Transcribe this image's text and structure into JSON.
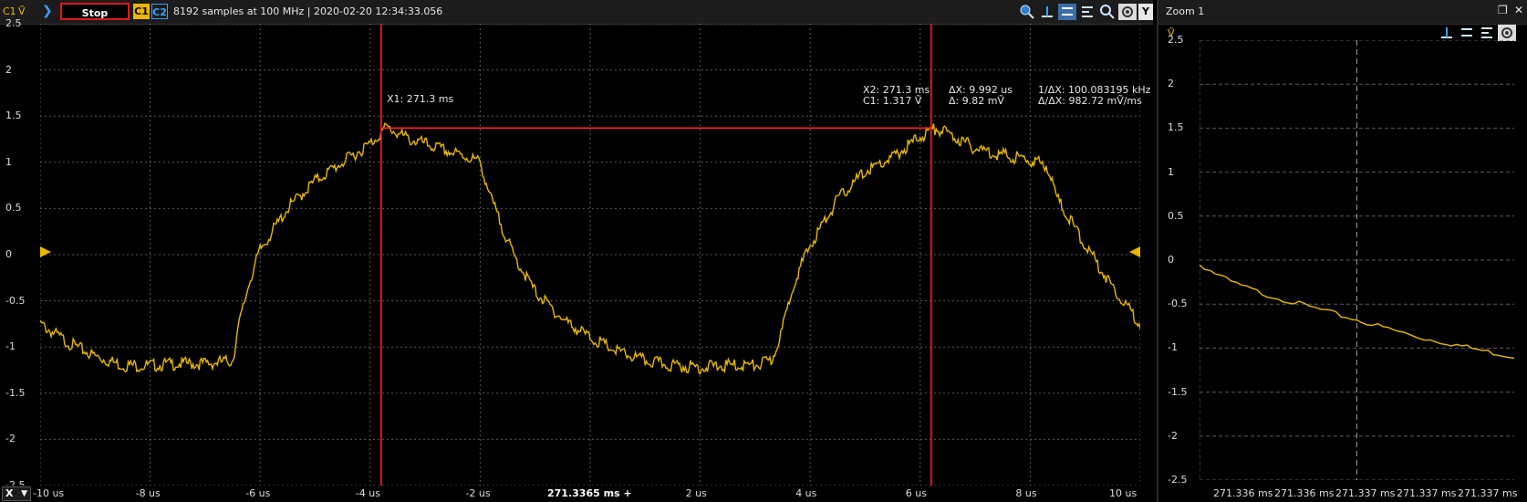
{
  "toolbar": {
    "channel_label": "C1",
    "channel_unit": "Ṽ",
    "run_state_label": "Stop",
    "channels": [
      "C1",
      "C2"
    ],
    "status_text": "8192 samples at 100 MHz | 2020-02-20 12:34:33.056",
    "y_label": "Y",
    "icons": [
      "zoom-in-icon",
      "cursor-x-icon",
      "cursor-y-icon",
      "measure-icon",
      "zoom-search-icon",
      "settings-icon"
    ]
  },
  "zoom_panel": {
    "title": "Zoom 1",
    "unit": "Ṽ",
    "icons": [
      "cursor-x-icon",
      "cursor-y-icon",
      "measure-icon",
      "settings-icon"
    ]
  },
  "colors": {
    "trace": "#e8b800",
    "cursor": "#ff2020",
    "grid": "#5a5a5a",
    "background": "#000000"
  },
  "cursors": {
    "x1_label": "X1: 271.3 ms",
    "x2_label": "X2: 271.3 ms",
    "c1_label": "C1: 1.317 Ṽ",
    "dx_label": "ΔX: 9.992 us",
    "dy_label": "Δ: 9.82 mṼ",
    "inv_dx_label": "1/ΔX: 100.083195 kHz",
    "slope_label": "Δ/ΔX: 982.72 mṼ/ms"
  },
  "x_axis": {
    "button_label": "X",
    "center_label": "271.3365 ms +"
  },
  "chart_data": [
    {
      "type": "line",
      "title": "",
      "x_unit": "us",
      "y_unit": "V",
      "xlim": [
        -10,
        10
      ],
      "ylim": [
        -2.5,
        2.5
      ],
      "x_ticks": [
        "-10 us",
        "-8 us",
        "-6 us",
        "-4 us",
        "-2 us",
        "2 us",
        "4 us",
        "6 us",
        "8 us",
        "10 us"
      ],
      "y_ticks": [
        "2.5",
        "2",
        "1.5",
        "1",
        "0.5",
        "0",
        "-0.5",
        "-1",
        "-1.5",
        "-2",
        "-2.5"
      ],
      "grid": true,
      "cursors_x": [
        -3.8,
        6.2
      ],
      "cursor_level": 1.37,
      "series": [
        {
          "x": [
            -10,
            -9.5,
            -9,
            -8.5,
            -8,
            -7.5,
            -7,
            -6.5,
            -6.4,
            -6.2,
            -6,
            -5.5,
            -5,
            -4.5,
            -4,
            -3.7,
            -3.3,
            -3,
            -2.5,
            -2.2,
            -2,
            -1.8,
            -1.4,
            -1,
            -0.5,
            0,
            0.5,
            1,
            1.5,
            2,
            2.5,
            3,
            3.3,
            3.5,
            3.7,
            4,
            4.5,
            5,
            5.5,
            6,
            6.3,
            6.7,
            7,
            7.5,
            8,
            8.3,
            8.5,
            9,
            9.5,
            10
          ],
          "y": [
            -0.75,
            -0.95,
            -1.1,
            -1.2,
            -1.2,
            -1.18,
            -1.18,
            -1.15,
            -0.8,
            -0.3,
            0.05,
            0.5,
            0.8,
            1.0,
            1.2,
            1.38,
            1.25,
            1.2,
            1.1,
            1.05,
            1.0,
            0.6,
            0.0,
            -0.4,
            -0.7,
            -0.9,
            -1.05,
            -1.15,
            -1.2,
            -1.22,
            -1.2,
            -1.2,
            -1.15,
            -0.8,
            -0.3,
            0.1,
            0.6,
            0.9,
            1.05,
            1.28,
            1.37,
            1.25,
            1.15,
            1.08,
            1.02,
            0.97,
            0.6,
            0.1,
            -0.35,
            -0.75
          ]
        }
      ]
    },
    {
      "type": "line",
      "title": "",
      "x_unit": "ms",
      "y_unit": "V",
      "ylim": [
        -2.5,
        2.5
      ],
      "x_ticks": [
        "271.336 ms",
        "271.336 ms",
        "271.337 ms",
        "271.337 ms",
        "271.337 ms"
      ],
      "y_ticks": [
        "2.5",
        "2",
        "1.5",
        "1",
        "0.5",
        "0",
        "-0.5",
        "-1",
        "-1.5",
        "-2",
        "-2.5"
      ],
      "grid": true,
      "series": [
        {
          "x": [
            0,
            0.5,
            1,
            1.5,
            2,
            2.5,
            3,
            3.5,
            4,
            4.5,
            5
          ],
          "y": [
            -0.05,
            -0.25,
            -0.38,
            -0.48,
            -0.58,
            -0.68,
            -0.78,
            -0.88,
            -0.95,
            -1.03,
            -1.1
          ]
        }
      ]
    }
  ]
}
